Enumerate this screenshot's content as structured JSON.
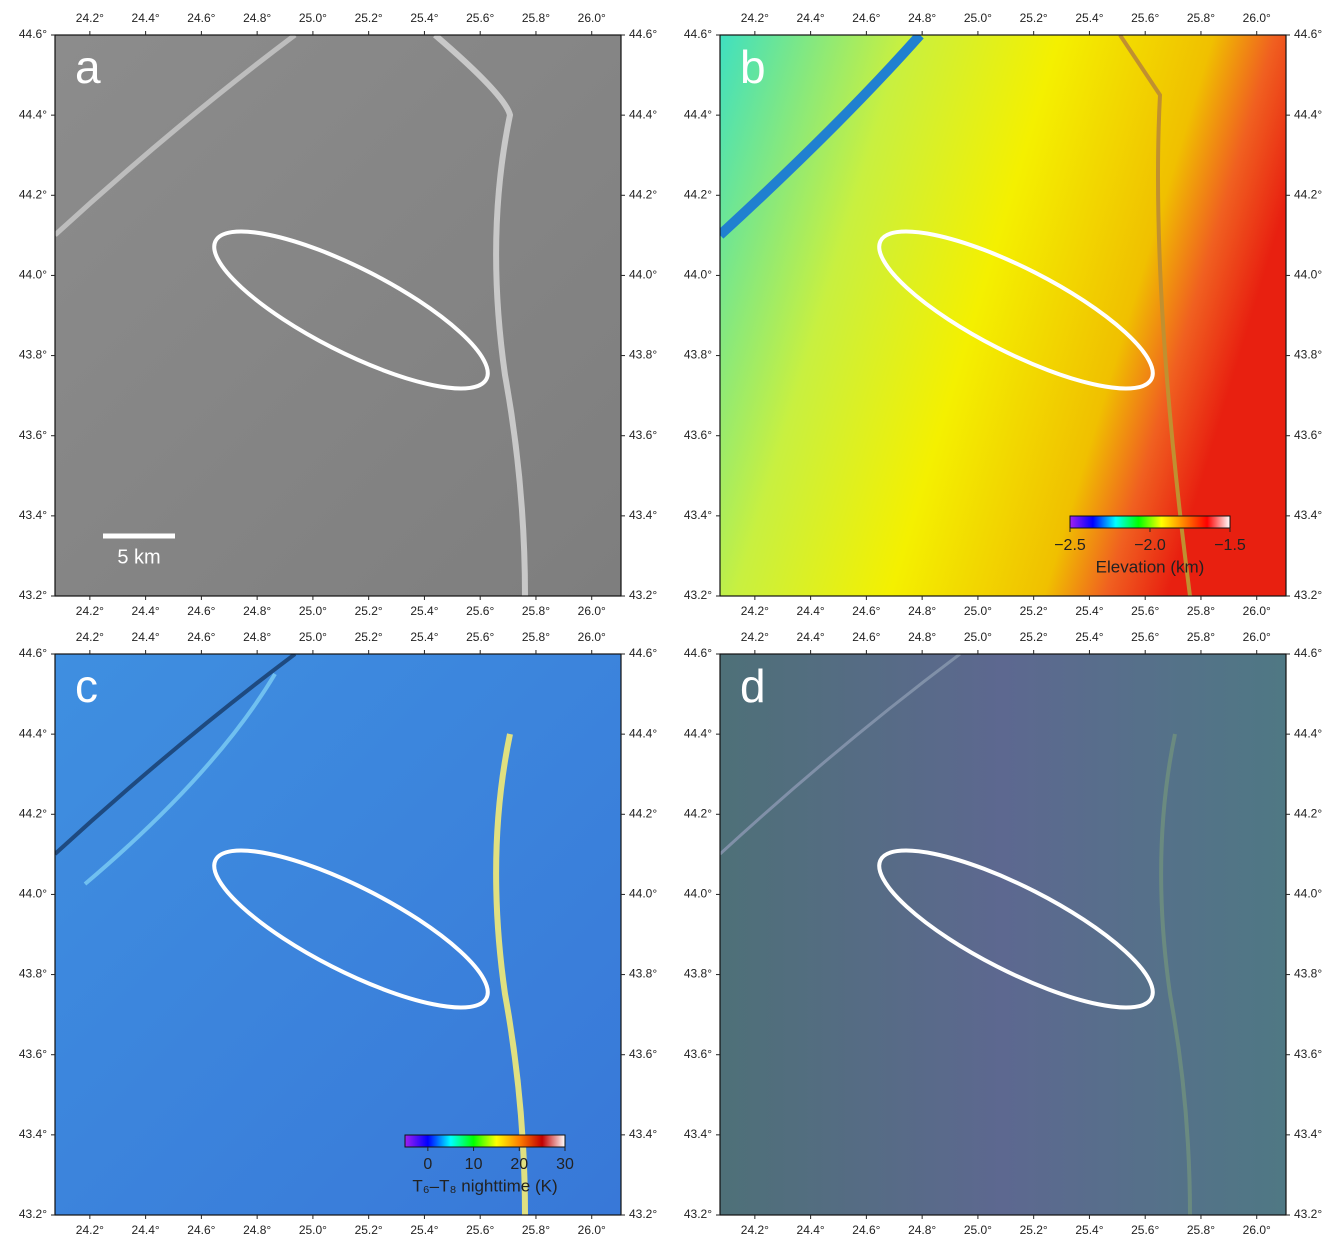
{
  "axes": {
    "xlim": [
      24.075,
      26.105
    ],
    "ylim": [
      43.2,
      44.6
    ],
    "xticks": [
      {
        "value": 24.2,
        "label": "24.2°"
      },
      {
        "value": 24.4,
        "label": "24.4°"
      },
      {
        "value": 24.6,
        "label": "24.6°"
      },
      {
        "value": 24.8,
        "label": "24.8°"
      },
      {
        "value": 25.0,
        "label": "25.0°"
      },
      {
        "value": 25.2,
        "label": "25.2°"
      },
      {
        "value": 25.4,
        "label": "25.4°"
      },
      {
        "value": 25.6,
        "label": "25.6°"
      },
      {
        "value": 25.8,
        "label": "25.8°"
      },
      {
        "value": 26.0,
        "label": "26.0°"
      }
    ],
    "yticks": [
      {
        "value": 43.2,
        "label": "43.2°"
      },
      {
        "value": 43.4,
        "label": "43.4°"
      },
      {
        "value": 43.6,
        "label": "43.6°"
      },
      {
        "value": 43.8,
        "label": "43.8°"
      },
      {
        "value": 44.0,
        "label": "44.0°"
      },
      {
        "value": 44.2,
        "label": "44.2°"
      },
      {
        "value": 44.4,
        "label": "44.4°"
      },
      {
        "value": 44.6,
        "label": "44.6°"
      }
    ]
  },
  "panels": [
    {
      "label": "a",
      "scale_bar": {
        "label": "5 km"
      }
    },
    {
      "label": "b",
      "colorbar": {
        "label": "Elevation (km)",
        "lim": [
          -2.5,
          -1.5
        ],
        "ticks": [
          {
            "value": -2.5,
            "label": "−2.5"
          },
          {
            "value": -2.0,
            "label": "−2.0"
          },
          {
            "value": -1.5,
            "label": "−1.5"
          }
        ],
        "colors": [
          "#a020f0",
          "#0000ff",
          "#00ffff",
          "#00ff00",
          "#ffff00",
          "#ff8000",
          "#ff0000",
          "#ffffff"
        ]
      }
    },
    {
      "label": "c",
      "colorbar": {
        "label": "T₆–T₈ nighttime (K)",
        "lim": [
          -5,
          30
        ],
        "ticks": [
          0,
          10,
          20,
          30
        ],
        "colors": [
          "#a020f0",
          "#0000ff",
          "#00ffff",
          "#00ff00",
          "#ffff00",
          "#ff8000",
          "#c00000",
          "#ffffff"
        ]
      }
    },
    {
      "label": "d"
    }
  ]
}
